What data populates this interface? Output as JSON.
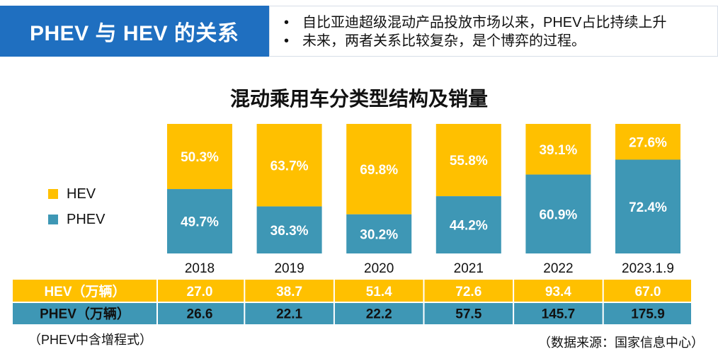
{
  "header": {
    "title": "PHEV 与 HEV 的关系",
    "notes": [
      "自比亚迪超级混动产品投放市场以来，PHEV占比持续上升",
      "未来，两者关系比较复杂，是个博弈的过程。"
    ]
  },
  "colors": {
    "header_bg": "#1F6FC0",
    "hev": "#FFC000",
    "phev": "#3E97B5"
  },
  "chart_data": {
    "type": "bar",
    "stacked": "percent",
    "title": "混动乘用车分类型结构及销量",
    "categories": [
      "2018",
      "2019",
      "2020",
      "2021",
      "2022",
      "2023.1.9"
    ],
    "series": [
      {
        "name": "HEV",
        "values": [
          50.3,
          63.7,
          69.8,
          55.8,
          39.1,
          27.6
        ],
        "labels": [
          "50.3%",
          "63.7%",
          "69.8%",
          "55.8%",
          "39.1%",
          "27.6%"
        ]
      },
      {
        "name": "PHEV",
        "values": [
          49.7,
          36.3,
          30.2,
          44.2,
          60.9,
          72.4
        ],
        "labels": [
          "49.7%",
          "36.3%",
          "30.2%",
          "44.2%",
          "60.9%",
          "72.4%"
        ]
      }
    ],
    "ylim": [
      0,
      100
    ],
    "legend": "left",
    "table": {
      "rows": [
        {
          "label": "HEV（万辆）",
          "values": [
            "27.0",
            "38.7",
            "51.4",
            "72.6",
            "93.4",
            "67.0"
          ]
        },
        {
          "label": "PHEV（万辆）",
          "values": [
            "26.6",
            "22.1",
            "22.2",
            "57.5",
            "145.7",
            "175.9"
          ]
        }
      ]
    }
  },
  "footnotes": {
    "left": "（PHEV中含增程式）",
    "right": "（数据来源：国家信息中心）"
  }
}
